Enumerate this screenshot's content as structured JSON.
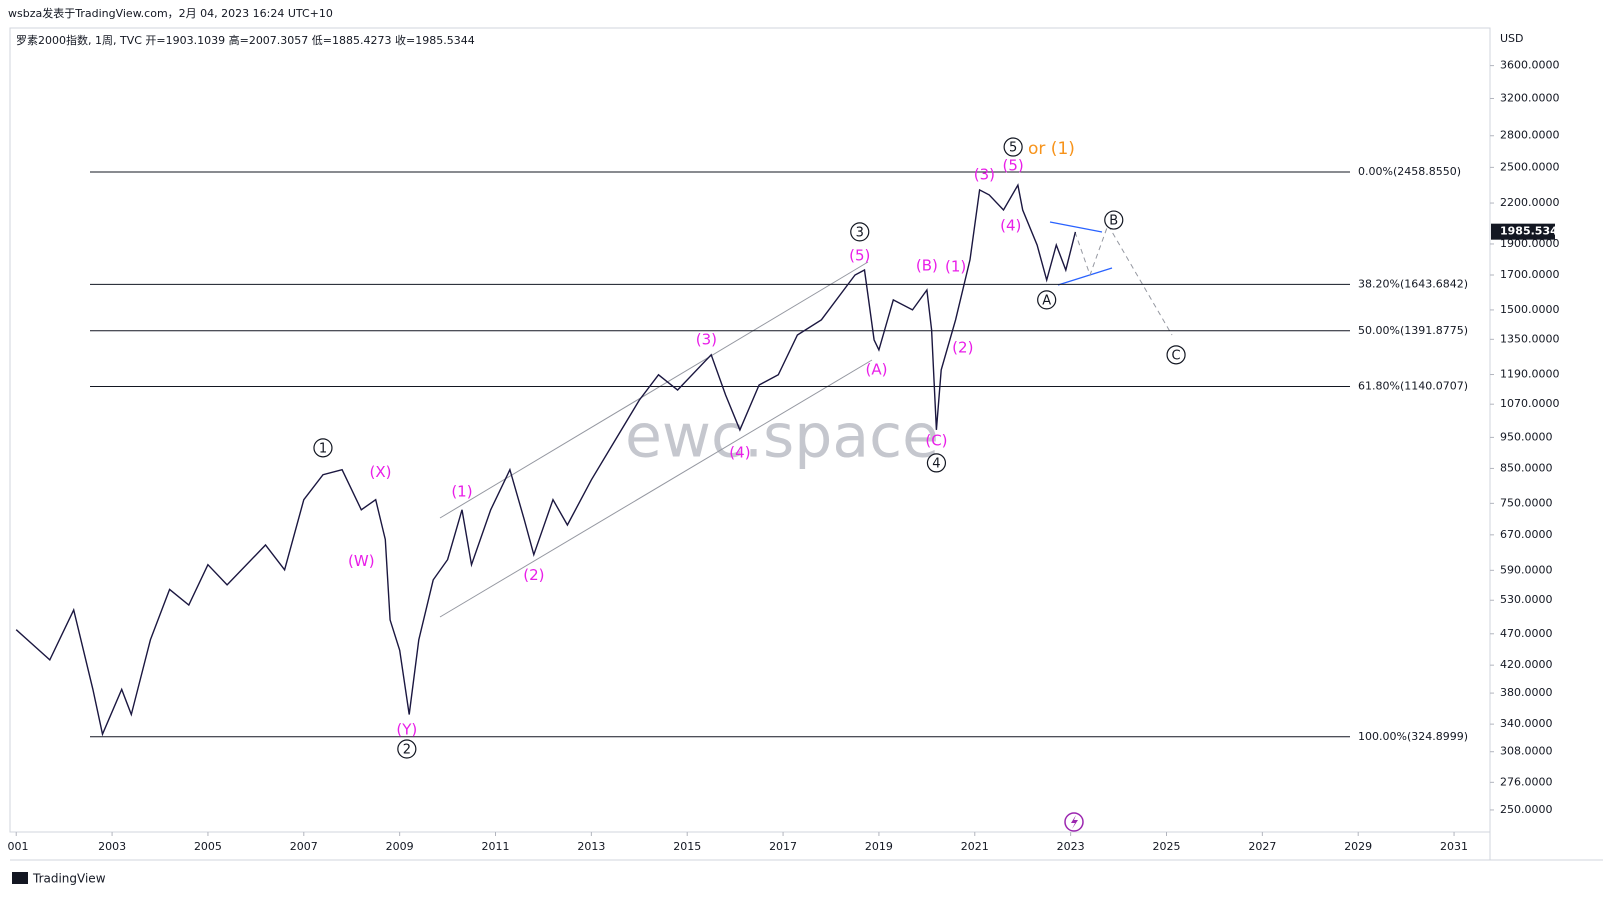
{
  "header": {
    "attribution": "wsbza发表于TradingView.com，2月 04, 2023 16:24 UTC+10",
    "legend": "罗素2000指数, 1周, TVC  开=1903.1039  高=2007.3057  低=1885.4273  收=1985.5344",
    "currency": "USD",
    "watermark": "ewc.space",
    "logo": "TradingView"
  },
  "chart_data": {
    "type": "line",
    "log_scale": true,
    "color": "#1b1740",
    "xlim": [
      2000.87,
      2031.75
    ],
    "ylim": [
      231,
      4090
    ],
    "xticks": [
      {
        "value": 2001,
        "label": "001"
      },
      2003,
      2005,
      2007,
      2009,
      2011,
      2013,
      2015,
      2017,
      2019,
      2021,
      2023,
      2025,
      2027,
      2029,
      2031
    ],
    "yticks": [
      {
        "value": 3600,
        "label": "3600.0000"
      },
      {
        "value": 3200,
        "label": "3200.0000"
      },
      {
        "value": 2800,
        "label": "2800.0000"
      },
      {
        "value": 2500,
        "label": "2500.0000"
      },
      {
        "value": 2200,
        "label": "2200.0000"
      },
      {
        "value": 1900,
        "label": "1900.0000"
      },
      {
        "value": 1700,
        "label": "1700.0000"
      },
      {
        "value": 1500,
        "label": "1500.0000"
      },
      {
        "value": 1350,
        "label": "1350.0000"
      },
      {
        "value": 1190,
        "label": "1190.0000"
      },
      {
        "value": 1070,
        "label": "1070.0000"
      },
      {
        "value": 950,
        "label": "950.0000"
      },
      {
        "value": 850,
        "label": "850.0000"
      },
      {
        "value": 750,
        "label": "750.0000"
      },
      {
        "value": 670,
        "label": "670.0000"
      },
      {
        "value": 590,
        "label": "590.0000"
      },
      {
        "value": 530,
        "label": "530.0000"
      },
      {
        "value": 470,
        "label": "470.0000"
      },
      {
        "value": 420,
        "label": "420.0000"
      },
      {
        "value": 380,
        "label": "380.0000"
      },
      {
        "value": 340,
        "label": "340.0000"
      },
      {
        "value": 308,
        "label": "308.0000"
      },
      {
        "value": 276,
        "label": "276.0000"
      },
      {
        "value": 250,
        "label": "250.0000"
      }
    ],
    "series": [
      {
        "name": "罗素2000指数",
        "x": [
          2001.0,
          2001.7,
          2002.2,
          2002.6,
          2002.8,
          2003.2,
          2003.4,
          2003.8,
          2004.2,
          2004.6,
          2005.0,
          2005.4,
          2006.2,
          2006.6,
          2007.0,
          2007.4,
          2007.8,
          2008.2,
          2008.5,
          2008.7,
          2008.8,
          2009.0,
          2009.2,
          2009.4,
          2009.7,
          2010.0,
          2010.3,
          2010.5,
          2010.9,
          2011.3,
          2011.6,
          2011.8,
          2012.2,
          2012.5,
          2013.0,
          2013.5,
          2014.0,
          2014.4,
          2014.8,
          2015.5,
          2015.8,
          2016.1,
          2016.5,
          2016.9,
          2017.3,
          2017.8,
          2018.5,
          2018.7,
          2018.9,
          2019.0,
          2019.3,
          2019.7,
          2020.0,
          2020.1,
          2020.2,
          2020.3,
          2020.6,
          2020.9,
          2021.1,
          2021.3,
          2021.6,
          2021.9,
          2022.0,
          2022.3,
          2022.5,
          2022.7,
          2022.9,
          2023.1
        ],
        "values": [
          477,
          428,
          512,
          385,
          328,
          385,
          352,
          460,
          551,
          521,
          602,
          560,
          646,
          591,
          760,
          831,
          846,
          733,
          760,
          659,
          494,
          443,
          352,
          460,
          570,
          613,
          733,
          602,
          733,
          846,
          707,
          624,
          760,
          694,
          816,
          941,
          1086,
          1189,
          1126,
          1277,
          1106,
          976,
          1146,
          1189,
          1371,
          1448,
          1700,
          1731,
          1347,
          1300,
          1555,
          1500,
          1611,
          1397,
          976,
          1210,
          1448,
          1795,
          2306,
          2265,
          2146,
          2346,
          2146,
          1893,
          1670,
          1893,
          1731,
          1984
        ]
      }
    ],
    "last": {
      "value": 1985.5344,
      "label": "1985.5344"
    },
    "fib_levels": [
      {
        "value": 2458.855,
        "label": "0.00%(2458.8550)"
      },
      {
        "value": 1643.6842,
        "label": "38.20%(1643.6842)"
      },
      {
        "value": 1391.8775,
        "label": "50.00%(1391.8775)"
      },
      {
        "value": 1140.0707,
        "label": "61.80%(1140.0707)"
      },
      {
        "value": 324.8999,
        "label": "100.00%(324.8999)"
      }
    ],
    "annotations": [
      {
        "text": "1",
        "x": 2007.4,
        "y": 915,
        "circled": true,
        "color": "#131722"
      },
      {
        "text": "(X)",
        "x": 2008.6,
        "y": 840,
        "color": "#e91ee8"
      },
      {
        "text": "(W)",
        "x": 2008.2,
        "y": 611,
        "color": "#e91ee8"
      },
      {
        "text": "(Y)",
        "x": 2009.15,
        "y": 334,
        "color": "#e91ee8"
      },
      {
        "text": "2",
        "x": 2009.15,
        "y": 311,
        "circled": true,
        "color": "#131722"
      },
      {
        "text": "(1)",
        "x": 2010.3,
        "y": 784,
        "color": "#e91ee8"
      },
      {
        "text": "(2)",
        "x": 2011.8,
        "y": 581,
        "color": "#e91ee8"
      },
      {
        "text": "(3)",
        "x": 2015.4,
        "y": 1352,
        "color": "#e91ee8"
      },
      {
        "text": "(4)",
        "x": 2016.1,
        "y": 902,
        "color": "#e91ee8"
      },
      {
        "text": "3",
        "x": 2018.6,
        "y": 1984,
        "circled": true,
        "color": "#131722"
      },
      {
        "text": "(5)",
        "x": 2018.6,
        "y": 1827,
        "color": "#e91ee8"
      },
      {
        "text": "(A)",
        "x": 2018.95,
        "y": 1214,
        "color": "#e91ee8"
      },
      {
        "text": "(B)",
        "x": 2020.0,
        "y": 1762,
        "color": "#e91ee8"
      },
      {
        "text": "(1)",
        "x": 2020.6,
        "y": 1755,
        "color": "#e91ee8"
      },
      {
        "text": "(2)",
        "x": 2020.75,
        "y": 1313,
        "color": "#e91ee8"
      },
      {
        "text": "(C)",
        "x": 2020.2,
        "y": 941,
        "color": "#e91ee8"
      },
      {
        "text": "4",
        "x": 2020.2,
        "y": 867,
        "circled": true,
        "color": "#131722"
      },
      {
        "text": "(3)",
        "x": 2021.2,
        "y": 2441,
        "color": "#e91ee8"
      },
      {
        "text": "(5)",
        "x": 2021.8,
        "y": 2521,
        "color": "#e91ee8"
      },
      {
        "text": "5",
        "x": 2021.8,
        "y": 2689,
        "circled": true,
        "color": "#131722"
      },
      {
        "text": "or (1)",
        "x": 2022.6,
        "y": 2680,
        "color": "#f7931a"
      },
      {
        "text": "(4)",
        "x": 2021.75,
        "y": 2033,
        "color": "#e91ee8"
      },
      {
        "text": "A",
        "x": 2022.5,
        "y": 1555,
        "circled": true,
        "color": "#131722"
      },
      {
        "text": "B",
        "x": 2023.9,
        "y": 2070,
        "circled": true,
        "color": "#131722"
      },
      {
        "text": "C",
        "x": 2025.2,
        "y": 1277,
        "circled": true,
        "color": "#131722"
      }
    ]
  }
}
